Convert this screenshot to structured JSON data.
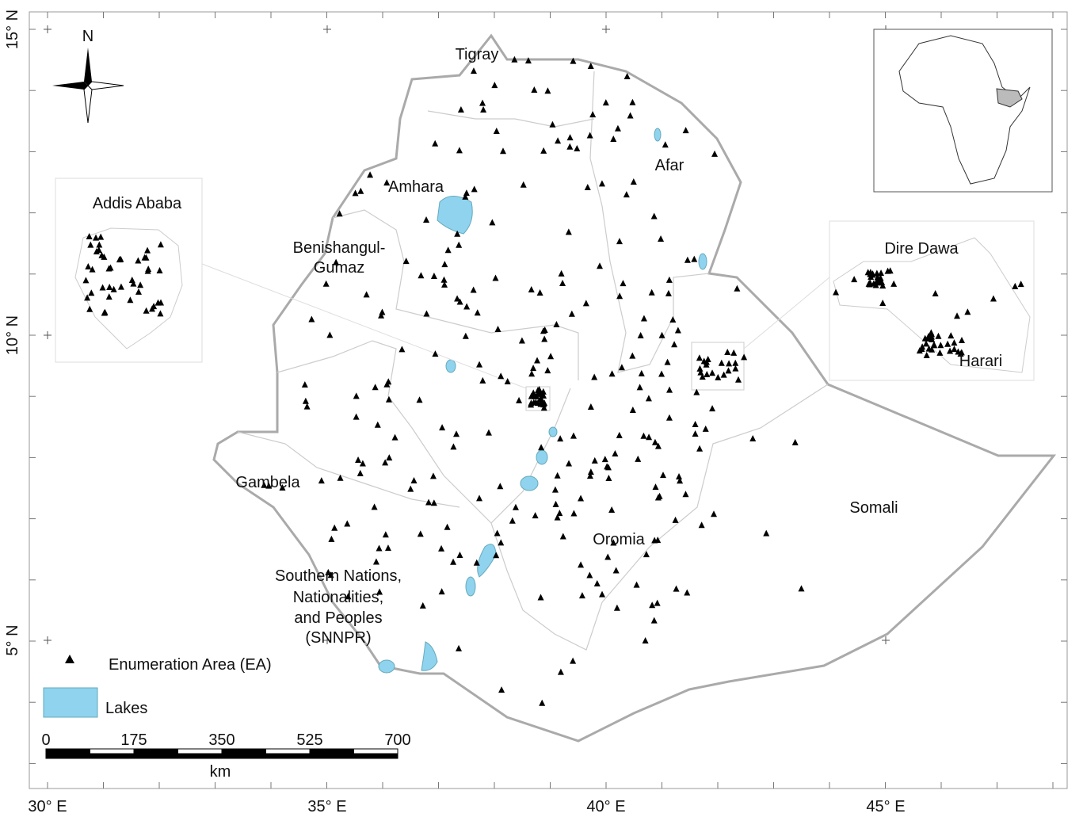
{
  "axes": {
    "lat_labels": [
      "15° N",
      "10° N",
      "5° N"
    ],
    "lon_labels": [
      "30° E",
      "35° E",
      "40° E",
      "45° E"
    ]
  },
  "compass": "N",
  "regions": {
    "tigray": [
      "Tigray"
    ],
    "afar": [
      "Afar"
    ],
    "amhara": [
      "Amhara"
    ],
    "benishangul": [
      "Benishangul-",
      "Gumaz"
    ],
    "gambela": [
      "Gambela"
    ],
    "oromia": [
      "Oromia"
    ],
    "somali": [
      "Somali"
    ],
    "snnpr": [
      "Southern Nations,",
      "Nationalities,",
      "and Peoples",
      "(SNNPR)"
    ]
  },
  "insets": {
    "addis_ababa": "Addis Ababa",
    "dire_dawa": "Dire Dawa",
    "harari": "Harari"
  },
  "legend": [
    {
      "label": "Enumeration Area (EA)"
    },
    {
      "label": "Lakes"
    }
  ],
  "scale_bar": {
    "ticks": [
      0,
      175,
      350,
      525,
      700
    ],
    "unit": "km"
  }
}
